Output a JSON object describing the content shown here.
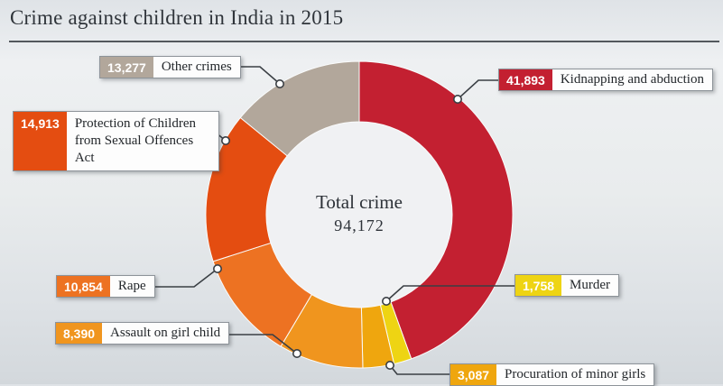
{
  "title": "Crime against children in India in 2015",
  "center": {
    "label": "Total crime",
    "value": "94,172"
  },
  "chart_data": {
    "type": "pie",
    "subtype": "donut",
    "title": "Crime against children in India in 2015",
    "center_label": "Total crime",
    "total": 94172,
    "total_text": "94,172",
    "start_angle": "top",
    "direction": "clockwise",
    "segments": [
      {
        "label": "Kidnapping and abduction",
        "value": 41893,
        "value_text": "41,893",
        "color": "#c32031"
      },
      {
        "label": "Murder",
        "value": 1758,
        "value_text": "1,758",
        "color": "#eed413"
      },
      {
        "label": "Procuration of minor girls",
        "value": 3087,
        "value_text": "3,087",
        "color": "#efa60e"
      },
      {
        "label": "Assault on girl child",
        "value": 8390,
        "value_text": "8,390",
        "color": "#f0951e"
      },
      {
        "label": "Rape",
        "value": 10854,
        "value_text": "10,854",
        "color": "#ed7222"
      },
      {
        "label": "Protection of Children from Sexual Offences Act",
        "value": 14913,
        "value_text": "14,913",
        "color": "#e44d11"
      },
      {
        "label": "Other crimes",
        "value": 13277,
        "value_text": "13,277",
        "color": "#b2a79b"
      }
    ],
    "hole_color": "#f0f1f3",
    "leader_line_color": "#3a3f44"
  }
}
